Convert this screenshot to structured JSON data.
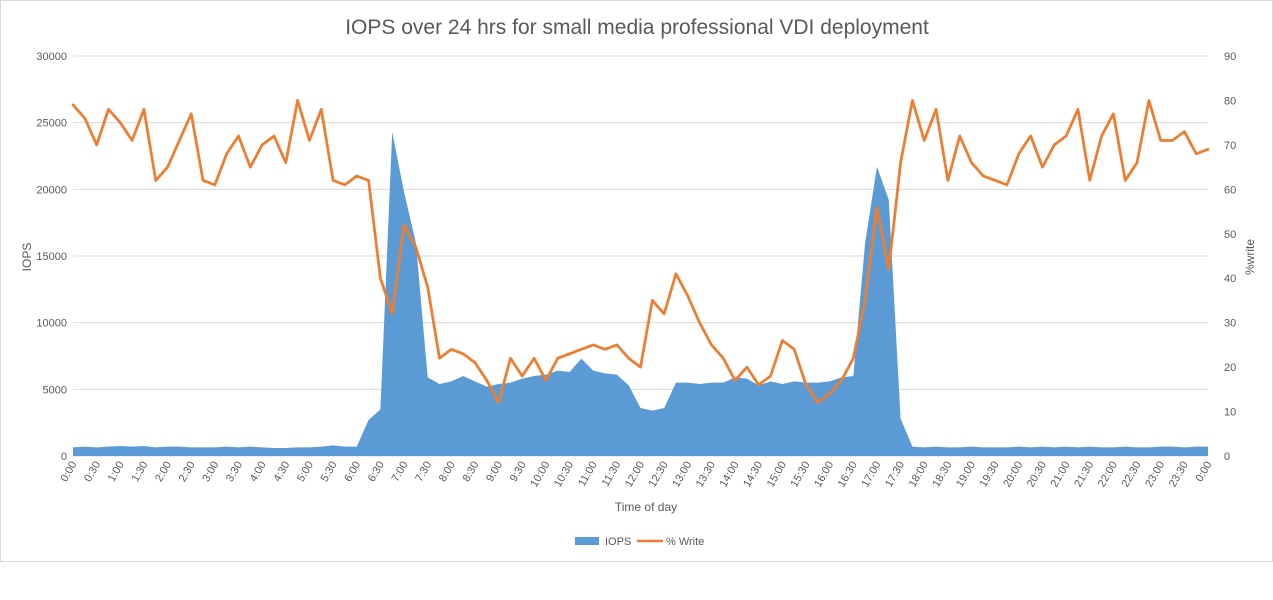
{
  "chart_data": {
    "type": "area+line",
    "title": "IOPS over 24 hrs for small media professional VDI deployment",
    "xlabel": "Time of day",
    "ylabel_left": "IOPS",
    "ylabel_right": "%write",
    "ylim_left": [
      0,
      30000
    ],
    "ylim_right": [
      0,
      90
    ],
    "yticks_left": [
      0,
      5000,
      10000,
      15000,
      20000,
      25000,
      30000
    ],
    "yticks_right": [
      0,
      10,
      20,
      30,
      40,
      50,
      60,
      70,
      80,
      90
    ],
    "grid": true,
    "legend_position": "bottom",
    "x_tick_labels": [
      "0:00",
      "0:30",
      "1:00",
      "1:30",
      "2:00",
      "2:30",
      "3:00",
      "3:30",
      "4:00",
      "4:30",
      "5:00",
      "5:30",
      "6:00",
      "6:30",
      "7:00",
      "7:30",
      "8:00",
      "8:30",
      "9:00",
      "9:30",
      "10:00",
      "10:30",
      "11:00",
      "11:30",
      "12:00",
      "12:30",
      "13:00",
      "13:30",
      "14:00",
      "14:30",
      "15:00",
      "15:30",
      "16:00",
      "16:30",
      "17:00",
      "17:30",
      "18:00",
      "18:30",
      "19:00",
      "19:30",
      "20:00",
      "20:30",
      "21:00",
      "21:30",
      "22:00",
      "22:30",
      "23:00",
      "23:30",
      "0:00"
    ],
    "x_step_minutes": 15,
    "series": [
      {
        "name": "IOPS",
        "kind": "area",
        "axis": "left",
        "color": "#5b9bd5",
        "values": [
          650,
          700,
          650,
          700,
          750,
          700,
          750,
          650,
          700,
          700,
          650,
          650,
          650,
          700,
          650,
          700,
          650,
          600,
          600,
          650,
          650,
          700,
          800,
          700,
          700,
          2700,
          3500,
          24300,
          19800,
          16000,
          5900,
          5400,
          5600,
          6000,
          5600,
          5200,
          5400,
          5500,
          5800,
          6000,
          6100,
          6400,
          6300,
          7300,
          6400,
          6200,
          6100,
          5300,
          3600,
          3400,
          3600,
          5500,
          5500,
          5400,
          5500,
          5500,
          5900,
          5800,
          5300,
          5600,
          5400,
          5600,
          5500,
          5500,
          5600,
          5900,
          6000,
          16000,
          21700,
          19200,
          2800,
          700,
          650,
          700,
          650,
          650,
          700,
          650,
          650,
          650,
          700,
          650,
          700,
          650,
          700,
          650,
          700,
          650,
          650,
          700,
          650,
          650,
          700,
          700,
          650,
          700,
          700
        ]
      },
      {
        "name": "% Write",
        "kind": "line",
        "axis": "right",
        "color": "#ed7d31",
        "values": [
          79,
          76,
          70,
          78,
          75,
          71,
          78,
          62,
          65,
          71,
          77,
          62,
          61,
          68,
          72,
          65,
          70,
          72,
          66,
          80,
          71,
          78,
          62,
          61,
          63,
          62,
          40,
          32,
          52,
          47,
          38,
          22,
          24,
          23,
          21,
          17,
          12,
          22,
          18,
          22,
          17,
          22,
          23,
          24,
          25,
          24,
          25,
          22,
          20,
          35,
          32,
          41,
          36,
          30,
          25,
          22,
          17,
          20,
          16,
          18,
          26,
          24,
          16,
          12,
          14,
          17,
          22,
          35,
          56,
          42,
          66,
          80,
          71,
          78,
          62,
          72,
          66,
          63,
          62,
          61,
          68,
          72,
          65,
          70,
          72,
          78,
          62,
          72,
          77,
          62,
          66,
          80,
          71,
          71,
          73,
          68,
          69
        ]
      }
    ]
  }
}
